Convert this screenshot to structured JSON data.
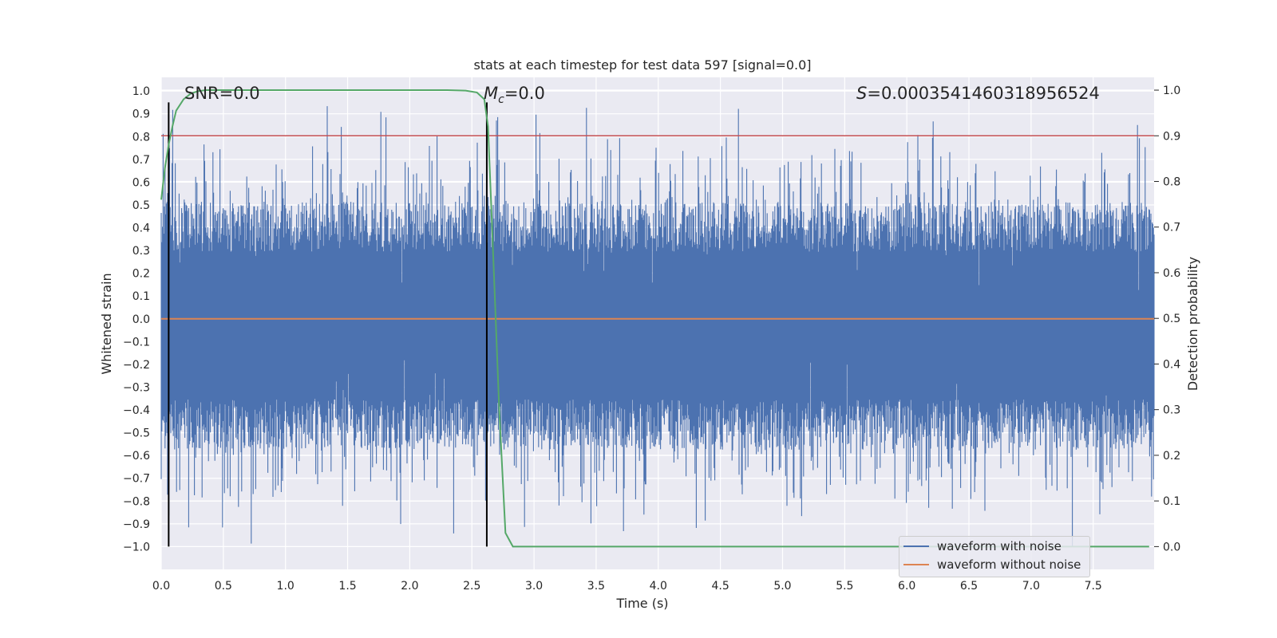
{
  "chart_data": {
    "type": "line",
    "title": "stats at each timestep for test data 597 [signal=0.0]",
    "xlabel": "Time (s)",
    "ylabel_left": "Whitened strain",
    "ylabel_right": "Detection probability",
    "xlim": [
      0.0,
      7.99
    ],
    "ylim_left": [
      -1.1,
      1.06
    ],
    "ylim_right": [
      -0.05,
      1.028
    ],
    "xticks": [
      "0.0",
      "0.5",
      "1.0",
      "1.5",
      "2.0",
      "2.5",
      "3.0",
      "3.5",
      "4.0",
      "4.5",
      "5.0",
      "5.5",
      "6.0",
      "6.5",
      "7.0",
      "7.5"
    ],
    "yticks_left": [
      "−1.0",
      "−0.9",
      "−0.8",
      "−0.7",
      "−0.6",
      "−0.5",
      "−0.4",
      "−0.3",
      "−0.2",
      "−0.1",
      "0.0",
      "0.1",
      "0.2",
      "0.3",
      "0.4",
      "0.5",
      "0.6",
      "0.7",
      "0.8",
      "0.9",
      "1.0"
    ],
    "yticks_right": [
      "0.0",
      "0.1",
      "0.2",
      "0.3",
      "0.4",
      "0.5",
      "0.6",
      "0.7",
      "0.8",
      "0.9",
      "1.0"
    ],
    "annotations": {
      "snr": "SNR=0.0",
      "mc_symbol": "M",
      "mc_sub": "c",
      "mc_value": "=0.0",
      "s_symbol": "S",
      "s_value": "=0.0003541460318956524"
    },
    "vlines_x": [
      0.06,
      2.62
    ],
    "vline_ymin": -1.0,
    "vline_ymax": 0.95,
    "threshold": {
      "axis": "right",
      "y": 0.9
    },
    "series": [
      {
        "name": "waveform with noise",
        "axis": "left",
        "color": "#4c72b0",
        "description": "dense noise band",
        "typical_range": [
          -0.42,
          0.36
        ],
        "extreme_range": [
          -1.0,
          0.95
        ]
      },
      {
        "name": "waveform without noise",
        "axis": "left",
        "color": "#dd8452",
        "x": [
          0.0,
          7.99
        ],
        "y": [
          0.0,
          0.0
        ]
      },
      {
        "name": "Detection probability",
        "axis": "right",
        "color": "#55a868",
        "x": [
          0.0,
          0.03,
          0.06,
          0.09,
          0.12,
          0.18,
          0.24,
          0.3,
          0.36,
          0.5,
          1.0,
          1.5,
          2.0,
          2.3,
          2.45,
          2.54,
          2.6,
          2.63,
          2.67,
          2.72,
          2.77,
          2.83,
          2.9,
          3.2,
          7.95
        ],
        "y": [
          0.76,
          0.83,
          0.88,
          0.92,
          0.955,
          0.98,
          0.993,
          0.998,
          1.0,
          1.0,
          1.0,
          1.0,
          1.0,
          1.0,
          0.999,
          0.995,
          0.98,
          0.92,
          0.65,
          0.3,
          0.03,
          0.0,
          0.0,
          0.0,
          0.0
        ]
      }
    ],
    "legend": [
      "waveform with noise",
      "waveform without noise"
    ],
    "legend_position": "lower-right",
    "colors": {
      "background": "#eaeaf2",
      "grid": "#ffffff",
      "threshold": "#c44e52",
      "vline": "#000000"
    }
  }
}
